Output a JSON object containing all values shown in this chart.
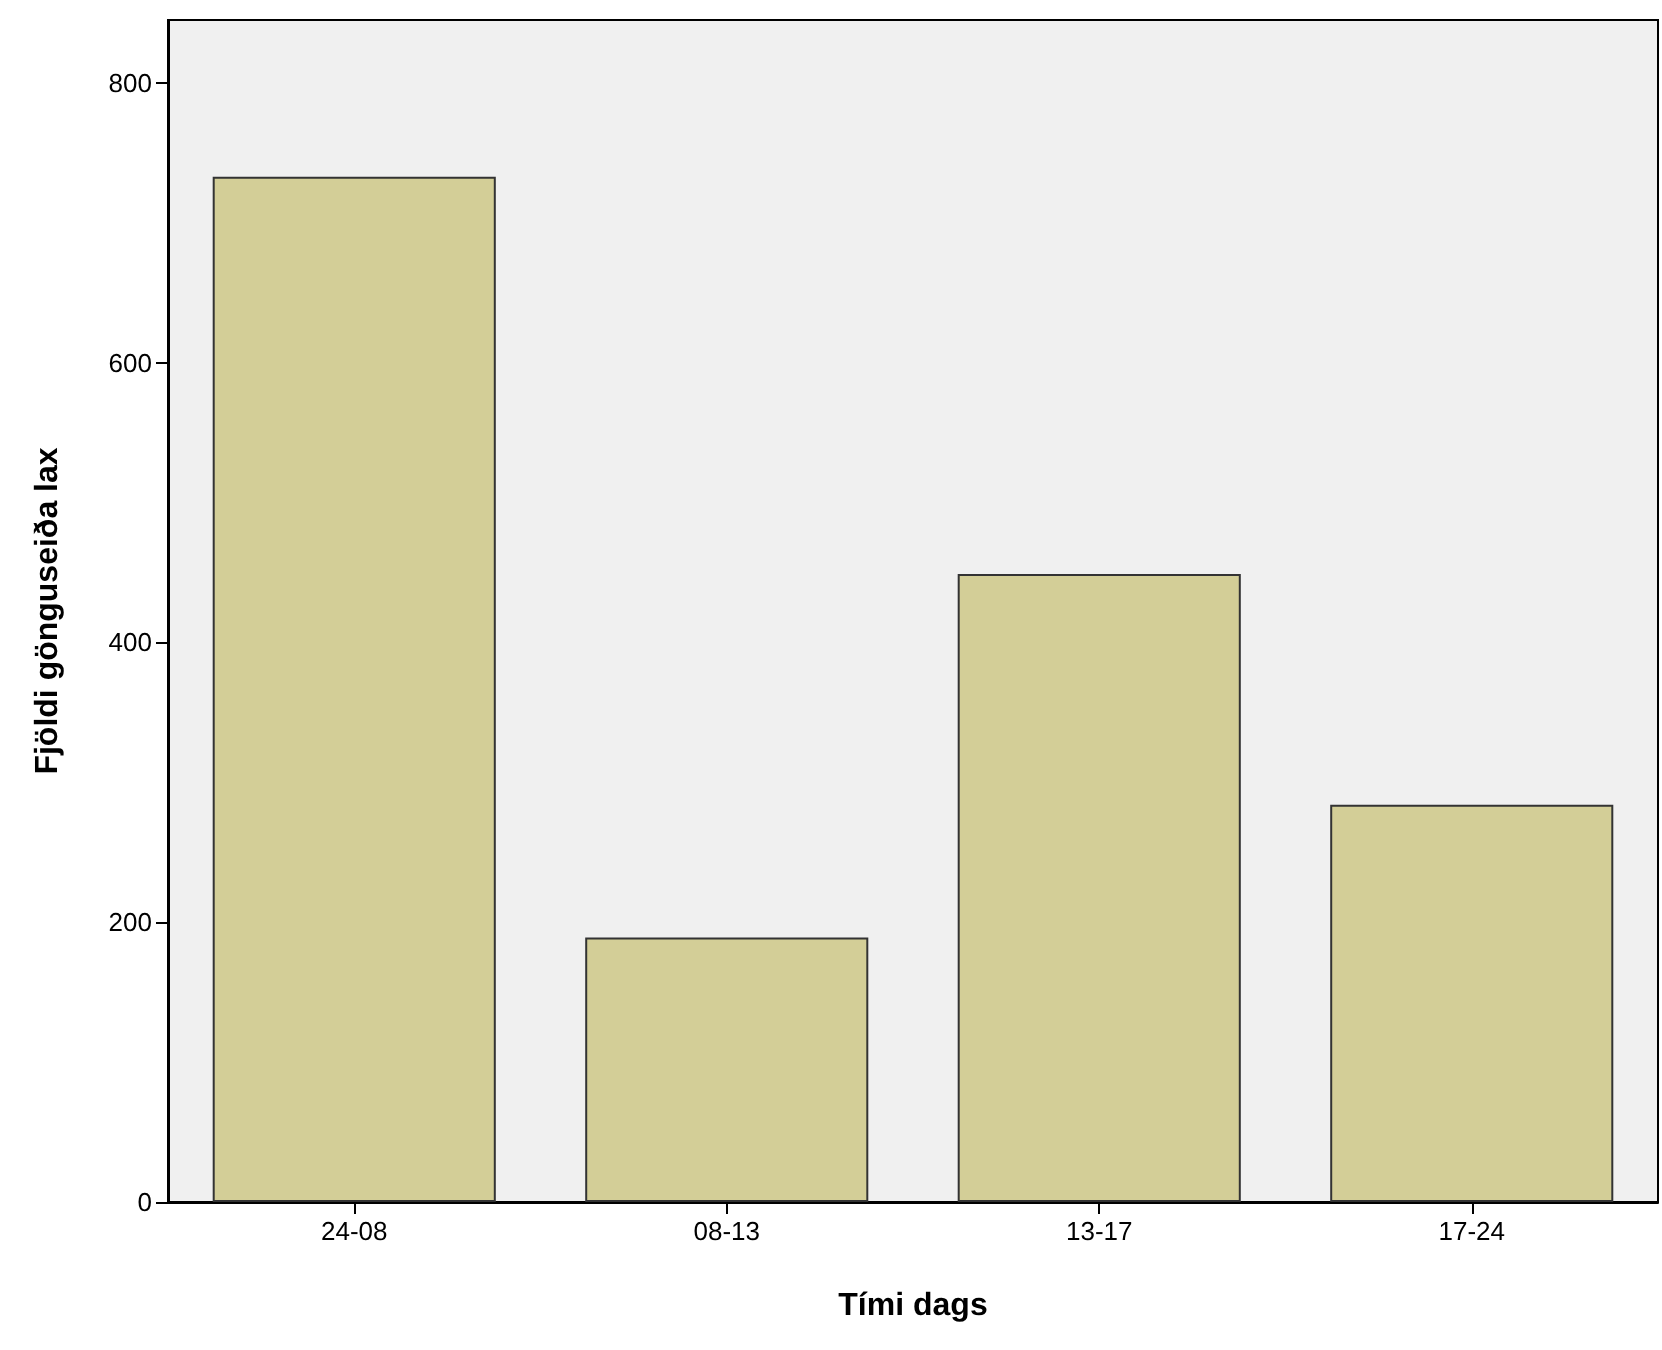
{
  "chart_data": {
    "type": "bar",
    "xlabel": "Tími dags",
    "ylabel": "Fjöldi gönguseiða lax",
    "categories": [
      "24-08",
      "08-13",
      "13-17",
      "17-24"
    ],
    "values": [
      733,
      189,
      449,
      284
    ],
    "color": "#d3ce97",
    "ylim": [
      0,
      845
    ],
    "yticks": [
      0,
      200,
      400,
      600,
      800
    ],
    "grid": false
  }
}
